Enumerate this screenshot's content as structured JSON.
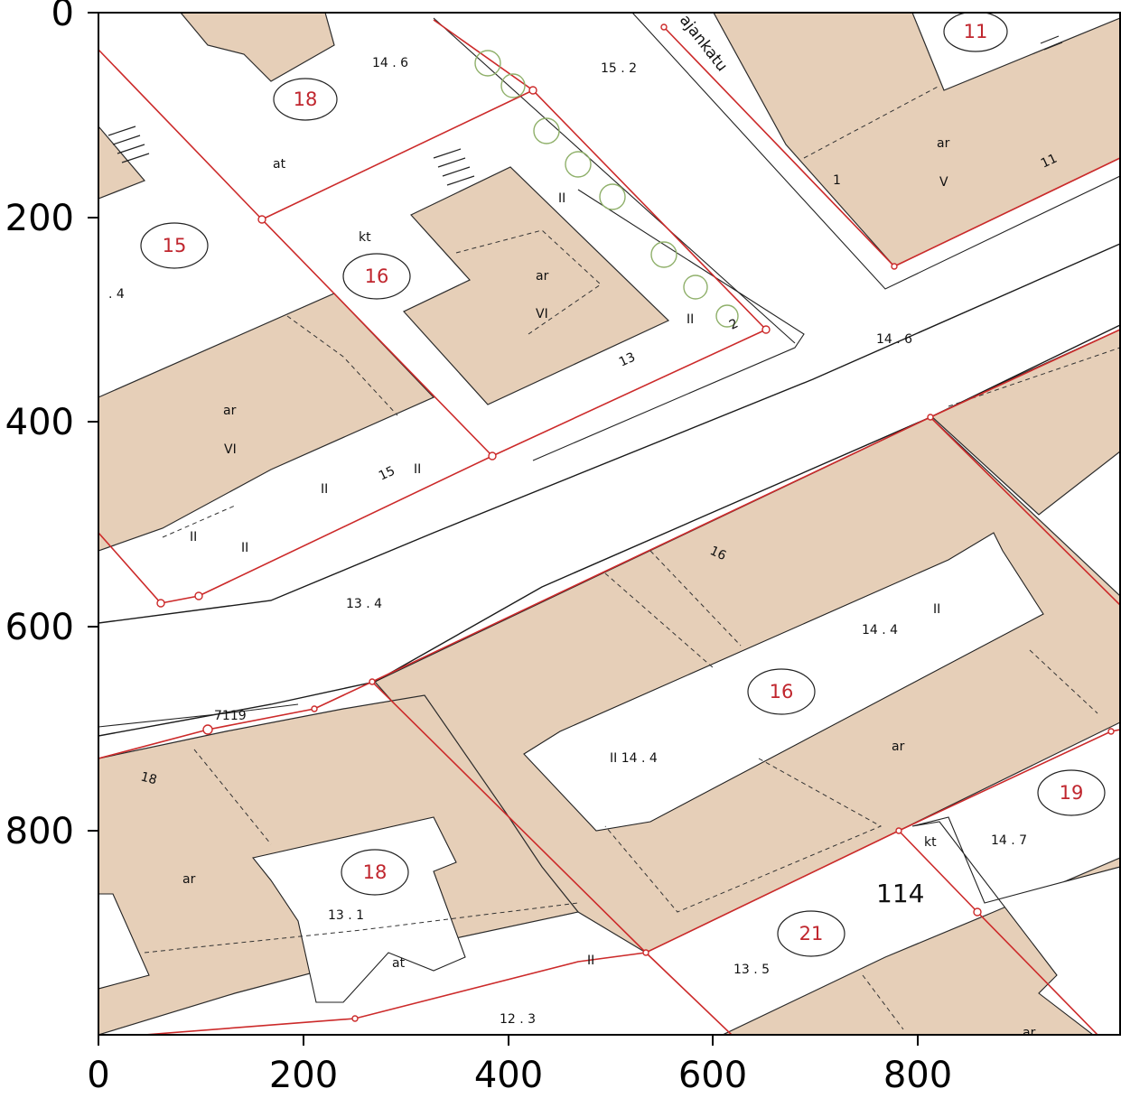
{
  "axes": {
    "x_ticks": [
      "0",
      "200",
      "400",
      "600",
      "800"
    ],
    "y_ticks": [
      "0",
      "200",
      "400",
      "600",
      "800"
    ]
  },
  "map": {
    "street_name": "ajankatu",
    "colors": {
      "building": "#e6cfb8",
      "property_line": "#cc2a2a",
      "block_number": "#c0262e",
      "tree": "#8fb06a"
    },
    "block_numbers": [
      {
        "id": "b11",
        "text": "11"
      },
      {
        "id": "b18a",
        "text": "18"
      },
      {
        "id": "b15",
        "text": "15"
      },
      {
        "id": "b16a",
        "text": "16"
      },
      {
        "id": "b16b",
        "text": "16"
      },
      {
        "id": "b19",
        "text": "19"
      },
      {
        "id": "b18b",
        "text": "18"
      },
      {
        "id": "b21",
        "text": "21"
      }
    ],
    "labels": [
      {
        "id": "l1",
        "text": "14 . 6"
      },
      {
        "id": "l2",
        "text": "15 . 2"
      },
      {
        "id": "l3",
        "text": "at"
      },
      {
        "id": "l4",
        "text": "ar"
      },
      {
        "id": "l5",
        "text": "V"
      },
      {
        "id": "l6",
        "text": "1"
      },
      {
        "id": "l7",
        "text": "11"
      },
      {
        "id": "l8",
        "text": "kt"
      },
      {
        "id": "l9",
        "text": "ar"
      },
      {
        "id": "l10",
        "text": "VI"
      },
      {
        "id": "l11",
        "text": "II"
      },
      {
        "id": "l12",
        "text": "II"
      },
      {
        "id": "l13",
        "text": "2"
      },
      {
        "id": "l14",
        "text": "13"
      },
      {
        "id": "l15",
        "text": ". 4"
      },
      {
        "id": "l16",
        "text": "14 . 6"
      },
      {
        "id": "l17",
        "text": "ar"
      },
      {
        "id": "l18",
        "text": "VI"
      },
      {
        "id": "l19",
        "text": "II"
      },
      {
        "id": "l20",
        "text": "15"
      },
      {
        "id": "l21",
        "text": "II"
      },
      {
        "id": "l22",
        "text": "II"
      },
      {
        "id": "l23",
        "text": "II"
      },
      {
        "id": "l24",
        "text": "16"
      },
      {
        "id": "l25",
        "text": "13 . 4"
      },
      {
        "id": "l26",
        "text": "14 . 4"
      },
      {
        "id": "l27",
        "text": "II"
      },
      {
        "id": "l28",
        "text": "7119"
      },
      {
        "id": "l29",
        "text": "II 14 . 4"
      },
      {
        "id": "l30",
        "text": "ar"
      },
      {
        "id": "l31",
        "text": "18"
      },
      {
        "id": "l32",
        "text": "ar"
      },
      {
        "id": "l33",
        "text": "kt"
      },
      {
        "id": "l34",
        "text": "14 . 7"
      },
      {
        "id": "l35",
        "text": "114"
      },
      {
        "id": "l36",
        "text": "13 . 1"
      },
      {
        "id": "l37",
        "text": "at"
      },
      {
        "id": "l38",
        "text": "II"
      },
      {
        "id": "l39",
        "text": "13 . 5"
      },
      {
        "id": "l40",
        "text": "12 . 3"
      },
      {
        "id": "l41",
        "text": "ar"
      }
    ]
  }
}
